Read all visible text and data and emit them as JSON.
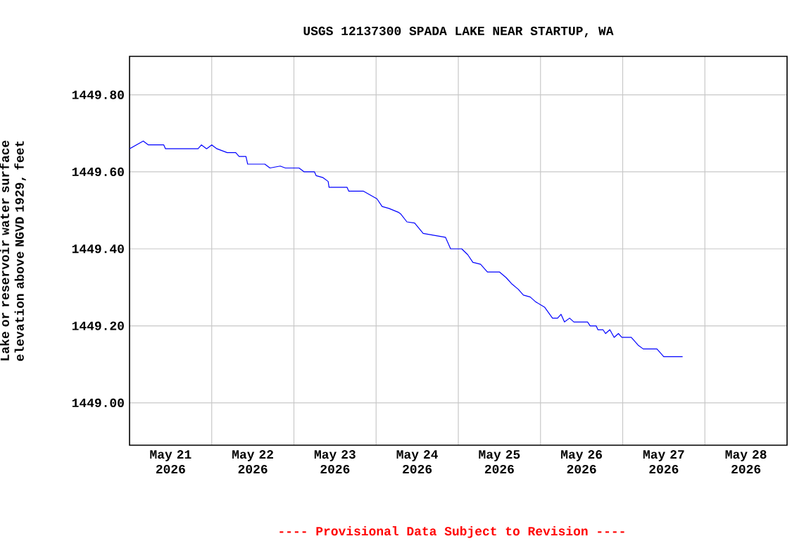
{
  "chart_data": {
    "type": "line",
    "title": "USGS 12137300 SPADA LAKE NEAR STARTUP, WA",
    "ylabel": "Lake or reservoir water surface elevation above NGVD 1929, feet",
    "annotations": [
      "---- Provisional Data Subject to Revision ----"
    ],
    "x": [
      "2026-05-21T00:00",
      "2026-05-21T04:00",
      "2026-05-21T05:30",
      "2026-05-21T10:00",
      "2026-05-21T10:30",
      "2026-05-21T20:00",
      "2026-05-21T21:00",
      "2026-05-21T22:30",
      "2026-05-22T00:00",
      "2026-05-22T01:30",
      "2026-05-22T04:30",
      "2026-05-22T07:00",
      "2026-05-22T08:00",
      "2026-05-22T10:00",
      "2026-05-22T10:30",
      "2026-05-22T15:30",
      "2026-05-22T17:00",
      "2026-05-22T20:00",
      "2026-05-22T21:30",
      "2026-05-23T01:30",
      "2026-05-23T03:00",
      "2026-05-23T06:00",
      "2026-05-23T06:30",
      "2026-05-23T08:30",
      "2026-05-23T10:00",
      "2026-05-23T10:15",
      "2026-05-23T15:30",
      "2026-05-23T16:00",
      "2026-05-23T20:15",
      "2026-05-23T22:15",
      "2026-05-24T00:15",
      "2026-05-24T01:45",
      "2026-05-24T03:45",
      "2026-05-24T06:30",
      "2026-05-24T07:15",
      "2026-05-24T09:00",
      "2026-05-24T11:15",
      "2026-05-24T13:45",
      "2026-05-24T20:15",
      "2026-05-24T21:45",
      "2026-05-25T01:00",
      "2026-05-25T02:45",
      "2026-05-25T04:15",
      "2026-05-25T06:30",
      "2026-05-25T08:30",
      "2026-05-25T12:00",
      "2026-05-25T14:00",
      "2026-05-25T15:30",
      "2026-05-25T17:30",
      "2026-05-25T19:00",
      "2026-05-25T21:00",
      "2026-05-25T22:30",
      "2026-05-26T01:15",
      "2026-05-26T03:30",
      "2026-05-26T05:00",
      "2026-05-26T06:00",
      "2026-05-26T07:00",
      "2026-05-26T08:30",
      "2026-05-26T09:45",
      "2026-05-26T13:45",
      "2026-05-26T14:30",
      "2026-05-26T16:15",
      "2026-05-26T16:45",
      "2026-05-26T18:15",
      "2026-05-26T19:00",
      "2026-05-26T20:15",
      "2026-05-26T21:30",
      "2026-05-26T22:45",
      "2026-05-26T23:45",
      "2026-05-27T02:30",
      "2026-05-27T04:30",
      "2026-05-27T06:00",
      "2026-05-27T10:00",
      "2026-05-27T12:00",
      "2026-05-27T17:30"
    ],
    "series": [
      {
        "color": "#0000ff",
        "values": [
          1449.66,
          1449.68,
          1449.67,
          1449.67,
          1449.66,
          1449.66,
          1449.67,
          1449.66,
          1449.67,
          1449.66,
          1449.65,
          1449.65,
          1449.64,
          1449.64,
          1449.62,
          1449.62,
          1449.61,
          1449.615,
          1449.61,
          1449.61,
          1449.6,
          1449.6,
          1449.59,
          1449.585,
          1449.575,
          1449.56,
          1449.56,
          1449.55,
          1449.55,
          1449.54,
          1449.53,
          1449.51,
          1449.505,
          1449.495,
          1449.49,
          1449.47,
          1449.467,
          1449.44,
          1449.43,
          1449.4,
          1449.4,
          1449.385,
          1449.365,
          1449.36,
          1449.34,
          1449.34,
          1449.325,
          1449.31,
          1449.295,
          1449.28,
          1449.275,
          1449.263,
          1449.248,
          1449.22,
          1449.22,
          1449.23,
          1449.21,
          1449.22,
          1449.21,
          1449.21,
          1449.2,
          1449.2,
          1449.19,
          1449.19,
          1449.18,
          1449.19,
          1449.17,
          1449.18,
          1449.17,
          1449.17,
          1449.15,
          1449.14,
          1449.14,
          1449.12,
          1449.12
        ]
      }
    ],
    "xlim": [
      "2026-05-21T00:00",
      "2026-05-29T00:00"
    ],
    "xticks": [
      {
        "value": "2026-05-21T12:00",
        "label": "May 21 2026"
      },
      {
        "value": "2026-05-22T12:00",
        "label": "May 22 2026"
      },
      {
        "value": "2026-05-23T12:00",
        "label": "May 23 2026"
      },
      {
        "value": "2026-05-24T12:00",
        "label": "May 24 2026"
      },
      {
        "value": "2026-05-25T12:00",
        "label": "May 25 2026"
      },
      {
        "value": "2026-05-26T12:00",
        "label": "May 26 2026"
      },
      {
        "value": "2026-05-27T12:00",
        "label": "May 27 2026"
      },
      {
        "value": "2026-05-28T12:00",
        "label": "May 28 2026"
      },
      {
        "value": "2026-05-22T00:00",
        "label": null
      },
      {
        "value": "2026-05-23T00:00",
        "label": null
      },
      {
        "value": "2026-05-24T00:00",
        "label": null
      },
      {
        "value": "2026-05-25T00:00",
        "label": null
      },
      {
        "value": "2026-05-26T00:00",
        "label": null
      },
      {
        "value": "2026-05-27T00:00",
        "label": null
      },
      {
        "value": "2026-05-28T00:00",
        "label": null
      }
    ],
    "ylim": [
      1448.89,
      1449.9
    ],
    "yticks": [
      {
        "value": 1449.0,
        "label": "1449.00"
      },
      {
        "value": 1449.2,
        "label": "1449.20"
      },
      {
        "value": 1449.4,
        "label": "1449.40"
      },
      {
        "value": 1449.6,
        "label": "1449.60"
      },
      {
        "value": 1449.8,
        "label": "1449.80"
      }
    ],
    "grid": true,
    "marker": "none",
    "line_style": "solid"
  }
}
